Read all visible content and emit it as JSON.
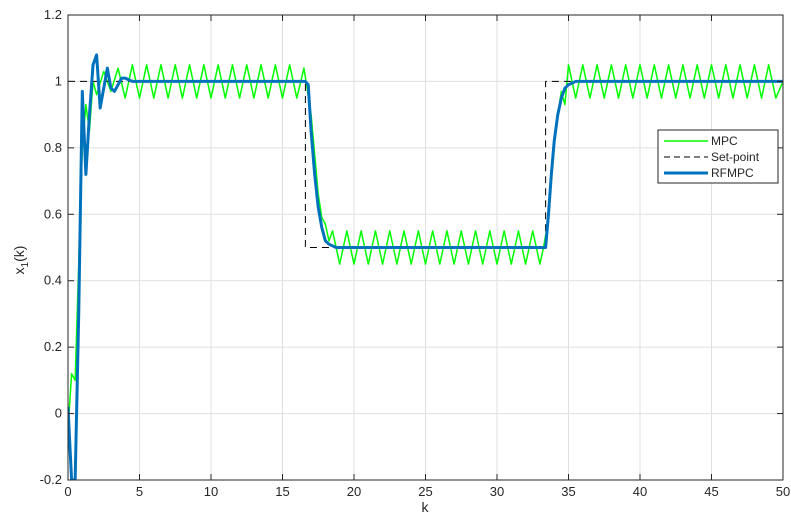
{
  "chart_data": {
    "type": "line",
    "xlabel": "k",
    "ylabel_main": "x",
    "ylabel_sub": "1",
    "ylabel_suffix": "(k)",
    "xlim": [
      0,
      50
    ],
    "ylim": [
      -0.2,
      1.2
    ],
    "grid": true,
    "legend_position": "right",
    "x_ticks": [
      0,
      5,
      10,
      15,
      20,
      25,
      30,
      35,
      40,
      45,
      50
    ],
    "x_tick_labels": [
      "0",
      "5",
      "10",
      "15",
      "20",
      "25",
      "30",
      "35",
      "40",
      "45",
      "50"
    ],
    "y_ticks": [
      -0.2,
      0,
      0.2,
      0.4,
      0.6,
      0.8,
      1,
      1.2
    ],
    "y_tick_labels": [
      "-0.2",
      "0",
      "0.2",
      "0.4",
      "0.6",
      "0.8",
      "1",
      "1.2"
    ],
    "series": [
      {
        "name": "MPC",
        "color": "#00ff00",
        "style": "solid",
        "x": [
          0,
          0.25,
          0.5,
          0.75,
          1.0,
          1.25,
          1.5,
          1.75,
          2.0,
          2.5,
          3.0,
          3.5,
          4.0,
          4.5,
          5,
          5.5,
          6,
          6.5,
          7,
          7.5,
          8,
          8.5,
          9,
          9.5,
          10,
          10.5,
          11,
          11.5,
          12,
          12.5,
          13,
          13.5,
          14,
          14.5,
          15,
          15.5,
          16,
          16.5,
          16.75,
          17.0,
          17.25,
          17.5,
          17.75,
          18.0,
          18.25,
          18.5,
          19,
          19.5,
          20,
          20.5,
          21,
          21.5,
          22,
          22.5,
          23,
          23.5,
          24,
          24.5,
          25,
          25.5,
          26,
          26.5,
          27,
          27.5,
          28,
          28.5,
          29,
          29.5,
          30,
          30.5,
          31,
          31.5,
          32,
          32.5,
          33,
          33.25,
          33.5,
          33.75,
          34.0,
          34.25,
          34.5,
          34.75,
          35,
          35.5,
          36,
          36.5,
          37,
          37.5,
          38,
          38.5,
          39,
          39.5,
          40,
          40.5,
          41,
          41.5,
          42,
          42.5,
          43,
          43.5,
          44,
          44.5,
          45,
          45.5,
          46,
          46.5,
          47,
          47.5,
          48,
          48.5,
          49,
          49.5,
          50
        ],
        "y": [
          -0.05,
          0.12,
          0.1,
          0.45,
          0.8,
          0.93,
          0.85,
          1.0,
          0.96,
          1.03,
          0.97,
          1.04,
          0.95,
          1.05,
          0.95,
          1.05,
          0.95,
          1.05,
          0.95,
          1.05,
          0.95,
          1.05,
          0.95,
          1.05,
          0.95,
          1.05,
          0.95,
          1.05,
          0.95,
          1.05,
          0.95,
          1.05,
          0.95,
          1.05,
          0.95,
          1.05,
          0.95,
          1.04,
          0.97,
          0.9,
          0.78,
          0.66,
          0.59,
          0.57,
          0.52,
          0.55,
          0.45,
          0.55,
          0.45,
          0.55,
          0.45,
          0.55,
          0.45,
          0.55,
          0.45,
          0.55,
          0.45,
          0.55,
          0.45,
          0.55,
          0.45,
          0.55,
          0.45,
          0.55,
          0.45,
          0.55,
          0.45,
          0.55,
          0.45,
          0.55,
          0.45,
          0.55,
          0.45,
          0.55,
          0.45,
          0.5,
          0.56,
          0.7,
          0.82,
          0.9,
          0.97,
          0.93,
          1.05,
          0.95,
          1.05,
          0.95,
          1.05,
          0.95,
          1.05,
          0.95,
          1.05,
          0.95,
          1.05,
          0.95,
          1.05,
          0.95,
          1.05,
          0.95,
          1.05,
          0.95,
          1.05,
          0.95,
          1.05,
          0.95,
          1.05,
          0.95,
          1.05,
          0.95,
          1.05,
          0.95,
          1.05,
          0.95,
          1.0
        ]
      },
      {
        "name": "Set-point",
        "color": "#000000",
        "style": "dashed",
        "x": [
          0,
          16.6,
          16.6,
          33.4,
          33.4,
          50
        ],
        "y": [
          1,
          1,
          0.5,
          0.5,
          1,
          1
        ]
      },
      {
        "name": "RFMPC",
        "color": "#0072bd",
        "style": "solid",
        "x": [
          0,
          0.25,
          0.5,
          0.75,
          1.0,
          1.25,
          1.5,
          1.75,
          2.0,
          2.25,
          2.5,
          2.75,
          3.0,
          3.25,
          3.5,
          3.75,
          4.0,
          4.5,
          5,
          10,
          16.6,
          16.8,
          17.0,
          17.25,
          17.5,
          17.75,
          18.0,
          18.25,
          18.5,
          18.75,
          19.0,
          19.5,
          20,
          33.4,
          33.6,
          33.8,
          34.0,
          34.25,
          34.5,
          34.75,
          35.0,
          35.5,
          36,
          50
        ],
        "y": [
          0.02,
          -0.2,
          -0.2,
          0.3,
          0.97,
          0.72,
          0.9,
          1.05,
          1.08,
          0.92,
          0.98,
          1.04,
          0.98,
          0.97,
          0.99,
          1.01,
          1.01,
          1.0,
          1.0,
          1.0,
          1.0,
          0.99,
          0.85,
          0.72,
          0.62,
          0.56,
          0.52,
          0.51,
          0.505,
          0.5,
          0.5,
          0.5,
          0.5,
          0.5,
          0.6,
          0.72,
          0.82,
          0.9,
          0.95,
          0.98,
          0.99,
          1.0,
          1.0,
          1.0
        ]
      }
    ]
  }
}
